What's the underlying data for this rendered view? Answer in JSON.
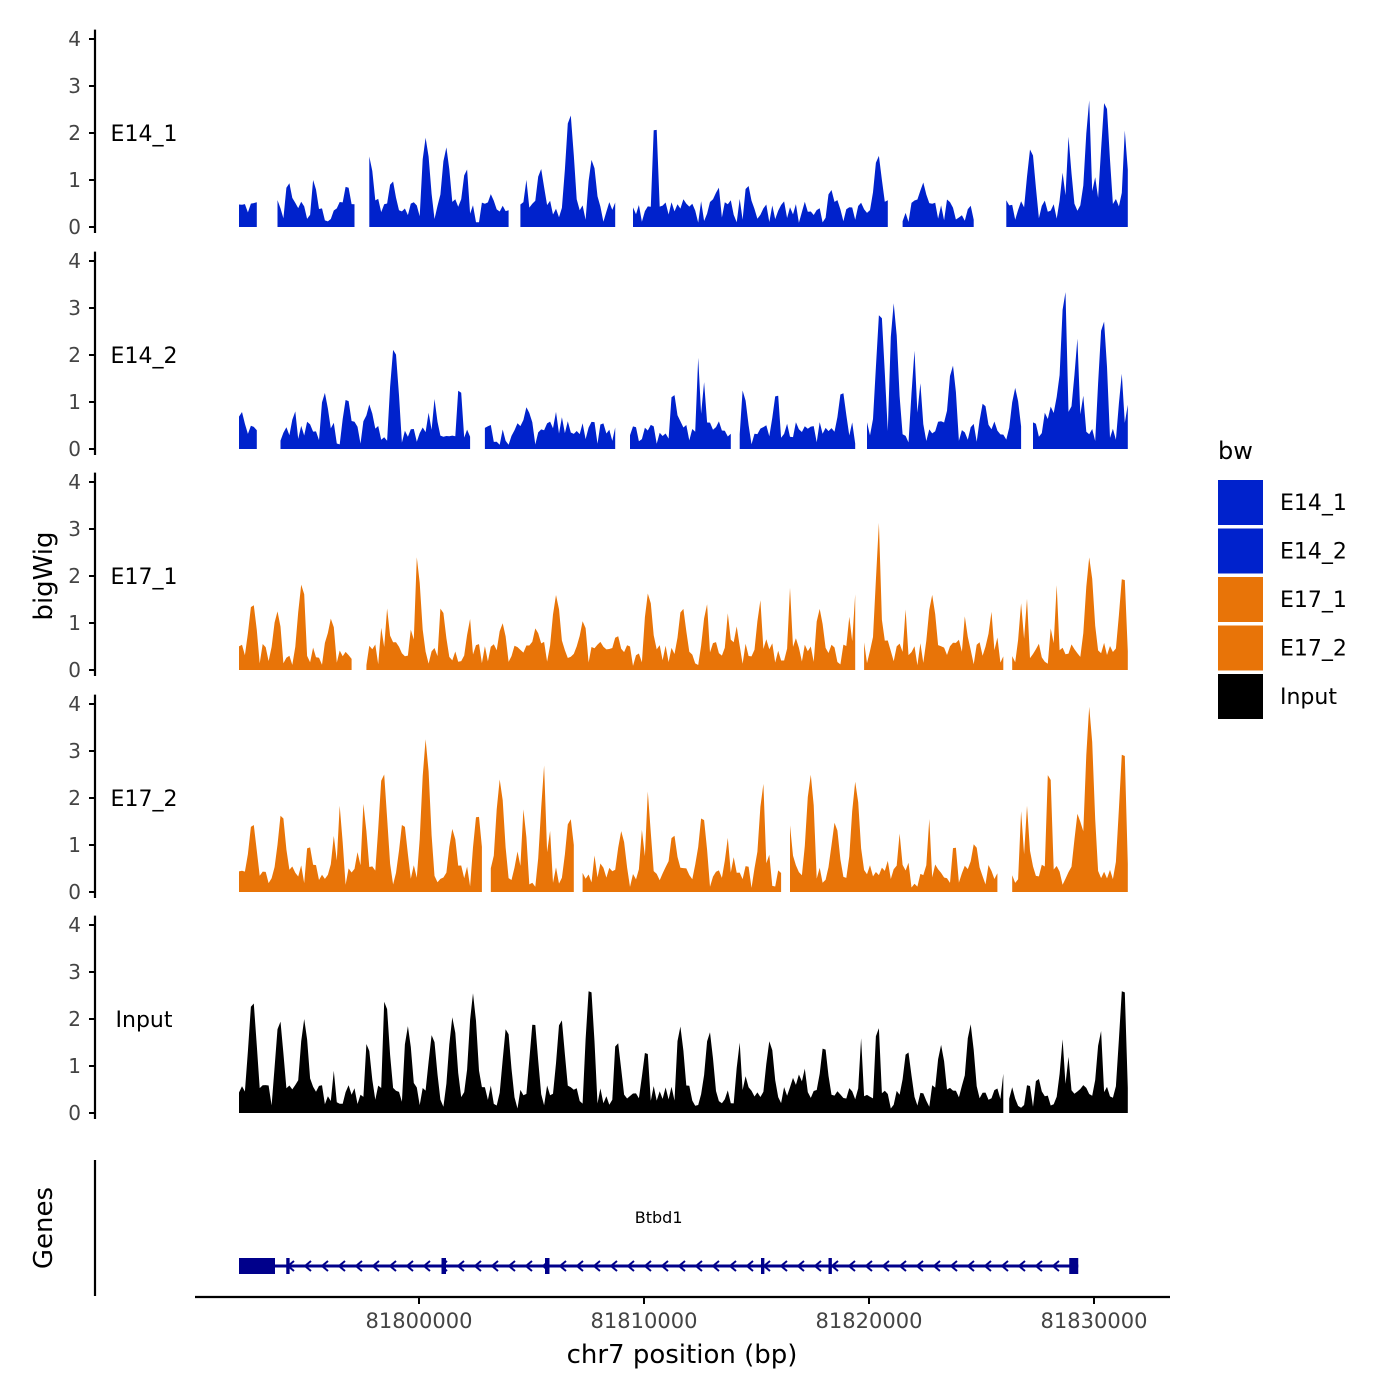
{
  "chart_data": {
    "type": "area",
    "ylabel": "bigWig",
    "xlabel": "chr7 position (bp)",
    "genes_label": "Genes",
    "y_ticks": [
      0,
      1,
      2,
      3,
      4
    ],
    "ylim": [
      0,
      4
    ],
    "xlim": [
      81790000,
      81833000
    ],
    "x_ticks": [
      81800000,
      81810000,
      81820000,
      81830000
    ],
    "x_tick_labels": [
      "81800000",
      "81810000",
      "81820000",
      "81830000"
    ],
    "legend": {
      "title": "bw",
      "entries": [
        {
          "name": "E14_1",
          "color": "#0022cc"
        },
        {
          "name": "E14_2",
          "color": "#0022cc"
        },
        {
          "name": "E17_1",
          "color": "#e87408"
        },
        {
          "name": "E17_2",
          "color": "#e87408"
        },
        {
          "name": "Input",
          "color": "#000000"
        }
      ]
    },
    "track_start": 81792000,
    "track_end": 81831500,
    "series": [
      {
        "name": "E14_1",
        "color": "#0022cc",
        "peaks": [
          [
            81793600,
            0.5
          ],
          [
            81794200,
            0.95
          ],
          [
            81795300,
            1.0
          ],
          [
            81796800,
            0.9
          ],
          [
            81797800,
            1.5
          ],
          [
            81798800,
            1.0
          ],
          [
            81800300,
            1.9
          ],
          [
            81801200,
            1.7
          ],
          [
            81802100,
            1.25
          ],
          [
            81803200,
            0.7
          ],
          [
            81804600,
            1.55
          ],
          [
            81805400,
            1.25
          ],
          [
            81806700,
            2.45
          ],
          [
            81807700,
            1.45
          ],
          [
            81809100,
            0.8
          ],
          [
            81810500,
            2.2
          ],
          [
            81811800,
            0.55
          ],
          [
            81813300,
            0.85
          ],
          [
            81814600,
            0.9
          ],
          [
            81816200,
            0.55
          ],
          [
            81818300,
            0.8
          ],
          [
            81820400,
            1.55
          ],
          [
            81822400,
            0.95
          ],
          [
            81824500,
            0.45
          ],
          [
            81827200,
            1.7
          ],
          [
            81828800,
            2.05
          ],
          [
            81829800,
            2.7
          ],
          [
            81830500,
            2.75
          ],
          [
            81831300,
            2.2
          ]
        ],
        "gaps": [
          [
            81792900,
            81793600
          ],
          [
            81797200,
            81797700
          ],
          [
            81804000,
            81804400
          ],
          [
            81808800,
            81809400
          ],
          [
            81820900,
            81821400
          ],
          [
            81824700,
            81826000
          ]
        ]
      },
      {
        "name": "E14_2",
        "color": "#0022cc",
        "peaks": [
          [
            81792100,
            0.8
          ],
          [
            81793000,
            0.7
          ],
          [
            81794500,
            0.8
          ],
          [
            81795800,
            1.2
          ],
          [
            81796800,
            1.1
          ],
          [
            81797800,
            0.95
          ],
          [
            81798900,
            2.2
          ],
          [
            81800600,
            1.2
          ],
          [
            81801800,
            1.3
          ],
          [
            81803100,
            0.45
          ],
          [
            81804800,
            0.9
          ],
          [
            81806200,
            0.95
          ],
          [
            81807400,
            0.6
          ],
          [
            81809900,
            0.6
          ],
          [
            81811300,
            1.2
          ],
          [
            81812500,
            2.2
          ],
          [
            81814400,
            1.25
          ],
          [
            81815900,
            1.2
          ],
          [
            81817500,
            0.5
          ],
          [
            81818800,
            1.25
          ],
          [
            81820500,
            3.0
          ],
          [
            81821100,
            3.1
          ],
          [
            81822100,
            2.3
          ],
          [
            81823700,
            1.8
          ],
          [
            81825100,
            1.0
          ],
          [
            81826500,
            1.3
          ],
          [
            81828100,
            2.6
          ],
          [
            81828700,
            3.4
          ],
          [
            81829300,
            2.4
          ],
          [
            81830400,
            2.8
          ],
          [
            81831300,
            1.7
          ]
        ],
        "gaps": [
          [
            81792800,
            81793800
          ],
          [
            81802300,
            81802800
          ],
          [
            81808800,
            81809300
          ],
          [
            81813900,
            81814200
          ],
          [
            81819400,
            81819900
          ],
          [
            81826800,
            81827200
          ]
        ]
      },
      {
        "name": "E17_1",
        "color": "#e87408",
        "peaks": [
          [
            81792600,
            1.45
          ],
          [
            81793700,
            1.25
          ],
          [
            81794800,
            1.85
          ],
          [
            81796100,
            1.1
          ],
          [
            81797200,
            1.2
          ],
          [
            81798500,
            1.45
          ],
          [
            81799900,
            2.4
          ],
          [
            81801000,
            1.35
          ],
          [
            81802300,
            1.1
          ],
          [
            81803700,
            1.0
          ],
          [
            81805200,
            0.9
          ],
          [
            81806100,
            1.6
          ],
          [
            81807300,
            1.05
          ],
          [
            81808800,
            0.75
          ],
          [
            81810200,
            1.65
          ],
          [
            81811700,
            1.35
          ],
          [
            81812800,
            1.4
          ],
          [
            81813900,
            1.9
          ],
          [
            81815200,
            1.5
          ],
          [
            81816500,
            1.75
          ],
          [
            81817800,
            1.3
          ],
          [
            81819300,
            1.8
          ],
          [
            81820500,
            3.3
          ],
          [
            81821600,
            1.3
          ],
          [
            81822800,
            1.6
          ],
          [
            81824200,
            1.2
          ],
          [
            81825500,
            1.3
          ],
          [
            81826900,
            1.9
          ],
          [
            81828300,
            1.85
          ],
          [
            81829800,
            2.4
          ],
          [
            81831300,
            2.05
          ]
        ],
        "gaps": [
          [
            81797100,
            81797600
          ],
          [
            81819400,
            81819700
          ],
          [
            81826000,
            81826300
          ]
        ]
      },
      {
        "name": "E17_2",
        "color": "#e87408",
        "peaks": [
          [
            81792600,
            1.5
          ],
          [
            81793900,
            1.7
          ],
          [
            81795100,
            1.0
          ],
          [
            81796400,
            2.0
          ],
          [
            81797500,
            1.9
          ],
          [
            81798400,
            2.6
          ],
          [
            81799300,
            1.5
          ],
          [
            81800300,
            3.25
          ],
          [
            81801500,
            1.35
          ],
          [
            81802600,
            1.7
          ],
          [
            81803600,
            2.4
          ],
          [
            81804600,
            1.8
          ],
          [
            81805600,
            2.75
          ],
          [
            81806700,
            1.6
          ],
          [
            81807900,
            0.9
          ],
          [
            81809000,
            1.3
          ],
          [
            81810100,
            2.3
          ],
          [
            81811300,
            1.25
          ],
          [
            81812600,
            1.65
          ],
          [
            81813800,
            1.25
          ],
          [
            81815300,
            2.3
          ],
          [
            81816400,
            1.6
          ],
          [
            81817400,
            2.5
          ],
          [
            81818500,
            1.5
          ],
          [
            81819400,
            2.35
          ],
          [
            81820600,
            1.5
          ],
          [
            81821500,
            1.65
          ],
          [
            81822600,
            1.7
          ],
          [
            81823800,
            1.0
          ],
          [
            81824700,
            1.05
          ],
          [
            81826900,
            2.3
          ],
          [
            81828000,
            2.6
          ],
          [
            81829300,
            1.7
          ],
          [
            81829800,
            3.95
          ],
          [
            81831300,
            3.1
          ]
        ],
        "gaps": [
          [
            81802800,
            81803100
          ],
          [
            81806900,
            81807200
          ],
          [
            81816100,
            81816400
          ],
          [
            81825800,
            81826300
          ]
        ]
      },
      {
        "name": "Input",
        "color": "#000000",
        "peaks": [
          [
            81792600,
            2.45
          ],
          [
            81793800,
            2.0
          ],
          [
            81794900,
            2.0
          ],
          [
            81796200,
            0.9
          ],
          [
            81797700,
            1.5
          ],
          [
            81798500,
            2.45
          ],
          [
            81799500,
            1.85
          ],
          [
            81800600,
            1.7
          ],
          [
            81801500,
            2.05
          ],
          [
            81802400,
            2.55
          ],
          [
            81803900,
            1.85
          ],
          [
            81805100,
            2.0
          ],
          [
            81806300,
            2.05
          ],
          [
            81807600,
            2.75
          ],
          [
            81808800,
            1.55
          ],
          [
            81810100,
            1.35
          ],
          [
            81811600,
            1.85
          ],
          [
            81812900,
            1.75
          ],
          [
            81814300,
            1.55
          ],
          [
            81815600,
            1.55
          ],
          [
            81816900,
            2.35
          ],
          [
            81818000,
            1.45
          ],
          [
            81819600,
            1.65
          ],
          [
            81820400,
            1.85
          ],
          [
            81821700,
            1.35
          ],
          [
            81823200,
            1.45
          ],
          [
            81824500,
            1.9
          ],
          [
            81825900,
            0.9
          ],
          [
            81827500,
            0.75
          ],
          [
            81828700,
            1.8
          ],
          [
            81830300,
            1.75
          ],
          [
            81831300,
            2.75
          ]
        ],
        "gaps": [
          [
            81826000,
            81826200
          ]
        ]
      }
    ],
    "genes": [
      {
        "name": "Btbd1",
        "start": 81792000,
        "end": 81829300,
        "strand": "-",
        "exons": [
          [
            81792000,
            81793600
          ],
          [
            81794100,
            81794250
          ],
          [
            81801000,
            81801200
          ],
          [
            81805600,
            81805800
          ],
          [
            81815200,
            81815350
          ],
          [
            81818200,
            81818350
          ],
          [
            81828900,
            81829300
          ]
        ]
      }
    ]
  }
}
